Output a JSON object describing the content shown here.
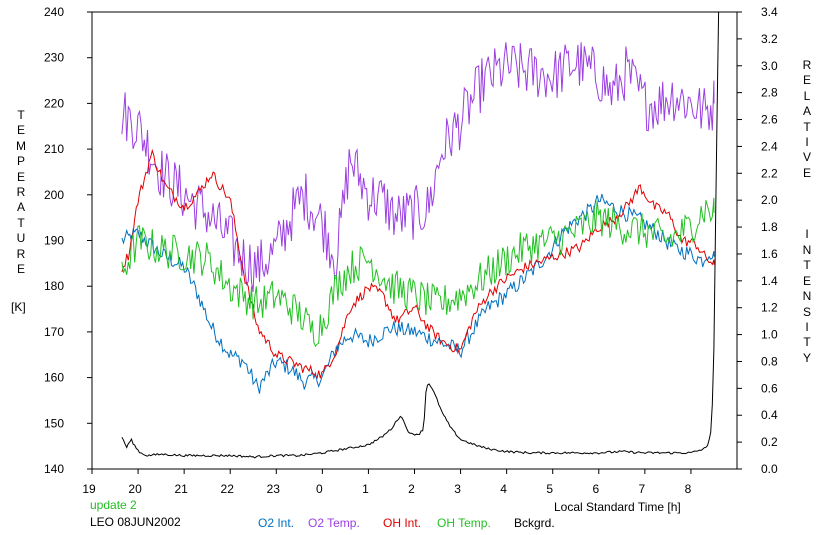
{
  "chart_data": {
    "type": "line",
    "left_axis": {
      "label": "TEMPERATURE",
      "unit": "[K]",
      "ylim": [
        140,
        240
      ],
      "ticks": [
        "140",
        "150",
        "160",
        "170",
        "180",
        "190",
        "200",
        "210",
        "220",
        "230",
        "240"
      ]
    },
    "right_axis": {
      "label": "RELATIVE INTENSITY",
      "ylim": [
        0.0,
        3.4
      ],
      "ticks": [
        "0.0",
        "0.2",
        "0.4",
        "0.6",
        "0.8",
        "1.0",
        "1.2",
        "1.4",
        "1.6",
        "1.8",
        "2.0",
        "2.2",
        "2.4",
        "2.6",
        "2.8",
        "3.0",
        "3.2",
        "3.4"
      ]
    },
    "x_axis": {
      "label": "Local Standard Time [h]",
      "xlim": [
        19,
        33
      ],
      "ticks": [
        "19",
        "20",
        "21",
        "22",
        "23",
        "0",
        "1",
        "2",
        "3",
        "4",
        "5",
        "6",
        "7",
        "8"
      ]
    },
    "grid": false,
    "legend_placement": "bottom",
    "series": [
      {
        "name": "O2 Int.",
        "axis": "right",
        "color": "#0070c0",
        "noise": 0.06,
        "x": [
          19.65,
          20.0,
          20.5,
          21.0,
          21.3,
          21.6,
          22.0,
          22.3,
          22.6,
          23.0,
          23.3,
          23.6,
          24.0,
          24.3,
          24.6,
          25.0,
          25.5,
          26.0,
          26.5,
          27.0,
          27.3,
          27.6,
          28.0,
          28.5,
          28.9,
          29.2,
          29.5,
          29.8,
          30.0,
          30.3,
          30.6,
          30.9,
          31.3,
          31.6,
          32.0,
          32.25,
          32.4,
          32.5
        ],
        "y": [
          1.7,
          1.75,
          1.6,
          1.5,
          1.3,
          1.05,
          0.85,
          0.8,
          0.6,
          0.8,
          0.75,
          0.65,
          0.68,
          0.9,
          1.0,
          0.95,
          1.05,
          1.02,
          0.95,
          0.88,
          1.05,
          1.2,
          1.3,
          1.45,
          1.6,
          1.75,
          1.85,
          1.92,
          2.0,
          1.95,
          1.9,
          1.85,
          1.75,
          1.65,
          1.6,
          1.55,
          1.62,
          1.58
        ]
      },
      {
        "name": "O2 Temp.",
        "axis": "left",
        "color": "#9b3fe0",
        "noise": 6,
        "x": [
          19.65,
          20.0,
          20.5,
          21.0,
          21.5,
          22.0,
          22.3,
          22.6,
          23.0,
          23.3,
          23.6,
          24.0,
          24.3,
          24.6,
          25.0,
          25.3,
          25.6,
          26.0,
          26.3,
          26.6,
          27.0,
          27.5,
          28.0,
          28.5,
          29.0,
          29.5,
          30.0,
          30.3,
          30.6,
          31.0,
          31.3,
          31.6,
          32.0,
          32.3,
          32.5
        ],
        "y": [
          218,
          215,
          205,
          200,
          196,
          190,
          186,
          184,
          188,
          195,
          200,
          194,
          186,
          208,
          200,
          199,
          195,
          196,
          197,
          210,
          216,
          225,
          228,
          227,
          226,
          229,
          226,
          222,
          227,
          220,
          220,
          222,
          220,
          218,
          220
        ]
      },
      {
        "name": "OH Int.",
        "axis": "right",
        "color": "#e00000",
        "noise": 0.04,
        "x": [
          19.65,
          19.8,
          20.0,
          20.3,
          20.6,
          21.0,
          21.3,
          21.6,
          22.0,
          22.3,
          22.6,
          23.0,
          23.3,
          23.6,
          24.0,
          24.3,
          24.6,
          25.0,
          25.3,
          25.6,
          26.0,
          26.3,
          26.6,
          27.0,
          27.3,
          27.6,
          28.0,
          28.4,
          28.8,
          29.2,
          29.6,
          30.0,
          30.3,
          30.6,
          30.9,
          31.2,
          31.5,
          31.8,
          32.1,
          32.3,
          32.5
        ],
        "y": [
          1.5,
          1.6,
          2.0,
          2.35,
          2.1,
          1.95,
          2.05,
          2.2,
          2.0,
          1.45,
          1.05,
          0.85,
          0.8,
          0.75,
          0.7,
          0.88,
          1.2,
          1.35,
          1.3,
          1.1,
          1.2,
          1.05,
          0.95,
          0.88,
          1.15,
          1.3,
          1.42,
          1.5,
          1.55,
          1.6,
          1.65,
          1.8,
          1.85,
          1.95,
          2.1,
          1.95,
          1.9,
          1.7,
          1.68,
          1.58,
          1.52
        ]
      },
      {
        "name": "OH Temp.",
        "axis": "left",
        "color": "#22c022",
        "noise": 4,
        "x": [
          19.65,
          20.0,
          20.5,
          21.0,
          21.5,
          22.0,
          22.3,
          22.6,
          23.0,
          23.5,
          23.8,
          24.0,
          24.3,
          24.6,
          25.0,
          25.5,
          26.0,
          26.5,
          27.0,
          27.5,
          28.0,
          28.5,
          29.0,
          29.5,
          30.0,
          30.5,
          31.0,
          31.5,
          32.0,
          32.3,
          32.5
        ],
        "y": [
          183,
          190,
          188,
          187,
          186,
          180,
          178,
          176,
          178,
          174,
          170,
          172,
          180,
          184,
          186,
          180,
          178,
          176,
          178,
          182,
          186,
          189,
          190,
          192,
          195,
          193,
          192,
          190,
          193,
          197,
          196
        ]
      },
      {
        "name": "Bckgrd.",
        "axis": "right",
        "color": "#000000",
        "noise": 0.008,
        "x": [
          19.65,
          19.75,
          19.85,
          19.95,
          20.05,
          20.2,
          20.5,
          21.0,
          21.5,
          22.0,
          22.5,
          23.0,
          23.5,
          24.0,
          24.5,
          25.0,
          25.3,
          25.5,
          25.7,
          25.9,
          26.1,
          26.2,
          26.25,
          26.3,
          26.45,
          26.6,
          26.8,
          27.0,
          27.3,
          27.6,
          28.0,
          28.5,
          29.0,
          29.5,
          30.0,
          30.5,
          31.0,
          31.5,
          32.0,
          32.2,
          32.35,
          32.45,
          32.5,
          32.55,
          32.6
        ],
        "y": [
          0.24,
          0.16,
          0.22,
          0.16,
          0.12,
          0.1,
          0.11,
          0.1,
          0.1,
          0.1,
          0.09,
          0.1,
          0.1,
          0.12,
          0.15,
          0.18,
          0.24,
          0.3,
          0.4,
          0.26,
          0.26,
          0.3,
          0.58,
          0.65,
          0.55,
          0.42,
          0.3,
          0.22,
          0.18,
          0.15,
          0.13,
          0.12,
          0.12,
          0.12,
          0.12,
          0.13,
          0.12,
          0.12,
          0.12,
          0.14,
          0.16,
          0.3,
          0.9,
          2.2,
          3.4
        ]
      }
    ]
  },
  "footer": {
    "update_text": "update 2",
    "station_text": "LEO 08JUN2002",
    "update_color": "#22c022"
  }
}
